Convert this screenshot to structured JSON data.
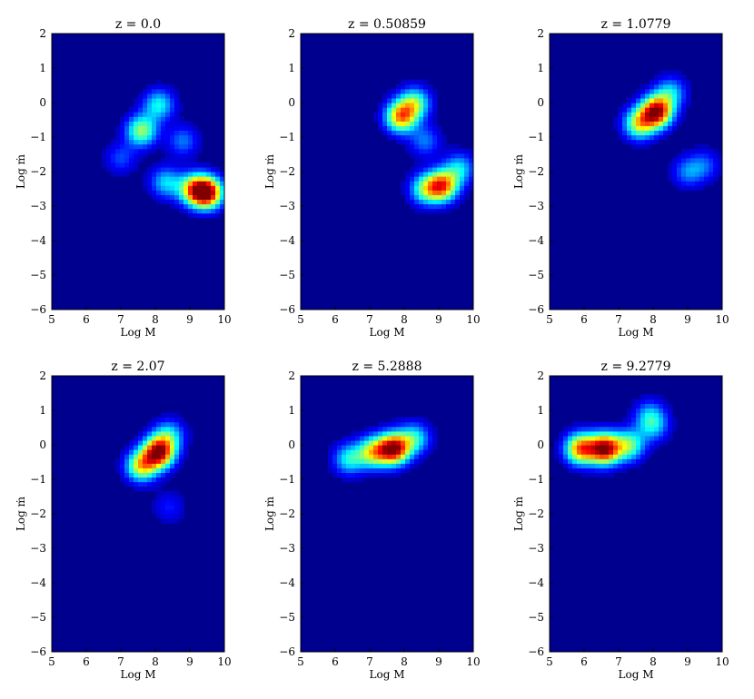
{
  "chart_data": [
    {
      "type": "heatmap",
      "title": "z = 0.0",
      "xlabel": "Log M",
      "ylabel": "Log ṁ",
      "xlim": [
        5,
        10
      ],
      "ylim": [
        -6,
        2
      ],
      "xticks": [
        "5",
        "6",
        "7",
        "8",
        "9",
        "10"
      ],
      "yticks": [
        "2",
        "1",
        "0",
        "−1",
        "−2",
        "−3",
        "−4",
        "−5",
        "−6"
      ],
      "grid": false,
      "density_peaks": [
        {
          "x": 9.5,
          "y": -2.6,
          "intensity": 1.0
        },
        {
          "x": 9.1,
          "y": -2.5,
          "intensity": 0.6
        },
        {
          "x": 8.3,
          "y": -2.3,
          "intensity": 0.35
        },
        {
          "x": 7.6,
          "y": -0.8,
          "intensity": 0.55
        },
        {
          "x": 8.1,
          "y": -0.05,
          "intensity": 0.4
        },
        {
          "x": 7.0,
          "y": -1.6,
          "intensity": 0.2
        },
        {
          "x": 8.8,
          "y": -1.1,
          "intensity": 0.25
        }
      ]
    },
    {
      "type": "heatmap",
      "title": "z = 0.50859",
      "xlabel": "Log M",
      "ylabel": "Log ṁ",
      "xlim": [
        5,
        10
      ],
      "ylim": [
        -6,
        2
      ],
      "xticks": [
        "5",
        "6",
        "7",
        "8",
        "9",
        "10"
      ],
      "yticks": [
        "2",
        "1",
        "0",
        "−1",
        "−2",
        "−3",
        "−4",
        "−5",
        "−6"
      ],
      "grid": false,
      "density_peaks": [
        {
          "x": 7.9,
          "y": -0.4,
          "intensity": 0.75
        },
        {
          "x": 8.3,
          "y": 0.0,
          "intensity": 0.5
        },
        {
          "x": 9.1,
          "y": -2.4,
          "intensity": 0.8
        },
        {
          "x": 8.6,
          "y": -2.5,
          "intensity": 0.45
        },
        {
          "x": 9.6,
          "y": -1.9,
          "intensity": 0.35
        },
        {
          "x": 8.6,
          "y": -1.1,
          "intensity": 0.25
        }
      ]
    },
    {
      "type": "heatmap",
      "title": "z = 1.0779",
      "xlabel": "Log M",
      "ylabel": "Log ṁ",
      "xlim": [
        5,
        10
      ],
      "ylim": [
        -6,
        2
      ],
      "xticks": [
        "5",
        "6",
        "7",
        "8",
        "9",
        "10"
      ],
      "yticks": [
        "2",
        "1",
        "0",
        "−1",
        "−2",
        "−3",
        "−4",
        "−5",
        "−6"
      ],
      "grid": false,
      "density_peaks": [
        {
          "x": 8.1,
          "y": -0.25,
          "intensity": 1.0
        },
        {
          "x": 7.6,
          "y": -0.6,
          "intensity": 0.6
        },
        {
          "x": 8.5,
          "y": 0.3,
          "intensity": 0.35
        },
        {
          "x": 9.0,
          "y": -2.0,
          "intensity": 0.25
        },
        {
          "x": 9.5,
          "y": -1.8,
          "intensity": 0.2
        }
      ]
    },
    {
      "type": "heatmap",
      "title": "z = 2.07",
      "xlabel": "Log M",
      "ylabel": "Log ṁ",
      "xlim": [
        5,
        10
      ],
      "ylim": [
        -6,
        2
      ],
      "xticks": [
        "5",
        "6",
        "7",
        "8",
        "9",
        "10"
      ],
      "yticks": [
        "2",
        "1",
        "0",
        "−1",
        "−2",
        "−3",
        "−4",
        "−5",
        "−6"
      ],
      "grid": false,
      "density_peaks": [
        {
          "x": 8.1,
          "y": -0.2,
          "intensity": 1.0
        },
        {
          "x": 7.6,
          "y": -0.6,
          "intensity": 0.65
        },
        {
          "x": 8.4,
          "y": 0.3,
          "intensity": 0.35
        },
        {
          "x": 8.4,
          "y": -1.8,
          "intensity": 0.15
        }
      ]
    },
    {
      "type": "heatmap",
      "title": "z = 5.2888",
      "xlabel": "Log M",
      "ylabel": "Log ṁ",
      "xlim": [
        5,
        10
      ],
      "ylim": [
        -6,
        2
      ],
      "xticks": [
        "5",
        "6",
        "7",
        "8",
        "9",
        "10"
      ],
      "yticks": [
        "2",
        "1",
        "0",
        "−1",
        "−2",
        "−3",
        "−4",
        "−5",
        "−6"
      ],
      "grid": false,
      "density_peaks": [
        {
          "x": 7.7,
          "y": -0.1,
          "intensity": 1.0
        },
        {
          "x": 7.1,
          "y": -0.2,
          "intensity": 0.6
        },
        {
          "x": 6.4,
          "y": -0.4,
          "intensity": 0.4
        },
        {
          "x": 8.3,
          "y": 0.2,
          "intensity": 0.4
        }
      ]
    },
    {
      "type": "heatmap",
      "title": "z = 9.2779",
      "xlabel": "Log M",
      "ylabel": "Log ṁ",
      "xlim": [
        5,
        10
      ],
      "ylim": [
        -6,
        2
      ],
      "xticks": [
        "5",
        "6",
        "7",
        "8",
        "9",
        "10"
      ],
      "yticks": [
        "2",
        "1",
        "0",
        "−1",
        "−2",
        "−3",
        "−4",
        "−5",
        "−6"
      ],
      "grid": false,
      "density_peaks": [
        {
          "x": 6.6,
          "y": -0.1,
          "intensity": 1.0
        },
        {
          "x": 5.9,
          "y": -0.1,
          "intensity": 0.8
        },
        {
          "x": 7.3,
          "y": 0.0,
          "intensity": 0.5
        },
        {
          "x": 7.9,
          "y": 0.9,
          "intensity": 0.25
        },
        {
          "x": 8.0,
          "y": 0.55,
          "intensity": 0.3
        }
      ]
    }
  ],
  "colors": {
    "background_cmap_low": "#00008f",
    "cmap": [
      "#00008f",
      "#0000ff",
      "#0080ff",
      "#00ffff",
      "#80ff80",
      "#ffff00",
      "#ff8000",
      "#ff0000",
      "#800000"
    ]
  }
}
